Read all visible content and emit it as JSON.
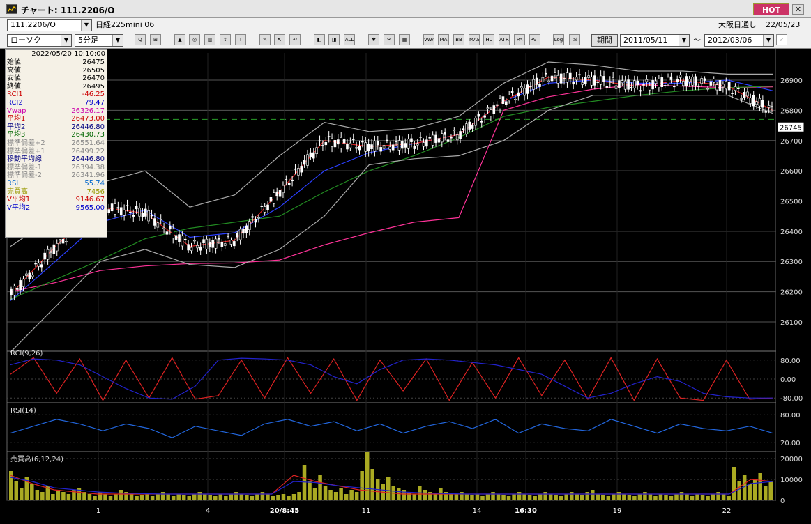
{
  "window": {
    "title": "チャート: 111.2206/O",
    "hot_label": "HOT",
    "close_label": "✕"
  },
  "row1": {
    "symbol_value": "111.2206/O",
    "instrument_name": "日経225mini 06",
    "market_label": "大阪日通し",
    "date_label": "22/05/23"
  },
  "row2": {
    "chart_type": "ローソク",
    "period": "5分足",
    "range_button": "期間",
    "date_from": "2011/05/11",
    "date_to": "2012/03/06",
    "range_sep": "〜"
  },
  "toolbar_buttons": [
    {
      "name": "zoom-icon",
      "label": "Q"
    },
    {
      "name": "grid-icon",
      "label": "⊞"
    },
    {
      "name": "chart-icon-1",
      "label": "▲"
    },
    {
      "name": "chart-icon-2",
      "label": "◎"
    },
    {
      "name": "chart-icon-3",
      "label": "▥"
    },
    {
      "name": "chart-icon-4",
      "label": "↕"
    },
    {
      "name": "chart-icon-5",
      "label": "!"
    },
    {
      "name": "pencil-icon",
      "label": "✎"
    },
    {
      "name": "cursor-icon",
      "label": "↖"
    },
    {
      "name": "undo-icon",
      "label": "↶"
    },
    {
      "name": "candle-icon-1",
      "label": "◧"
    },
    {
      "name": "candle-icon-2",
      "label": "◨"
    },
    {
      "name": "all-icon",
      "label": "ALL"
    },
    {
      "name": "settings-icon",
      "label": "✱"
    },
    {
      "name": "wrench-icon",
      "label": "✂"
    },
    {
      "name": "palette-icon",
      "label": "▦"
    },
    {
      "name": "vwap-button",
      "label": "VWAP"
    },
    {
      "name": "ma-button",
      "label": "MA"
    },
    {
      "name": "bb-button",
      "label": "BB"
    },
    {
      "name": "mae-button",
      "label": "MAE"
    },
    {
      "name": "hl-button",
      "label": "HL"
    },
    {
      "name": "atr-button",
      "label": "ATR"
    },
    {
      "name": "para-button",
      "label": "PA"
    },
    {
      "name": "pvt-button",
      "label": "PVT"
    },
    {
      "name": "log-button",
      "label": "Log"
    },
    {
      "name": "export-icon",
      "label": "⇲"
    }
  ],
  "infobox": {
    "timestamp": "2022/05/20  10:10:00",
    "rows": [
      {
        "label": "始値",
        "value": "26475",
        "color": "#000000"
      },
      {
        "label": "高値",
        "value": "26505",
        "color": "#000000"
      },
      {
        "label": "安値",
        "value": "26470",
        "color": "#000000"
      },
      {
        "label": "終値",
        "value": "26495",
        "color": "#000000"
      },
      {
        "label": "RCI1",
        "value": "-46.25",
        "color": "#cc0000"
      },
      {
        "label": "RCI2",
        "value": "79.47",
        "color": "#0000cc"
      },
      {
        "label": "Vwap",
        "value": "26326.17",
        "color": "#cc00aa"
      },
      {
        "label": "平均1",
        "value": "26473.00",
        "color": "#cc0000"
      },
      {
        "label": "平均2",
        "value": "26446.80",
        "color": "#000080"
      },
      {
        "label": "平均3",
        "value": "26430.73",
        "color": "#006600"
      },
      {
        "label": "標準偏差+2",
        "value": "26551.64",
        "color": "#888888"
      },
      {
        "label": "標準偏差+1",
        "value": "26499.22",
        "color": "#888888"
      },
      {
        "label": "移動平均線",
        "value": "26446.80",
        "color": "#000080"
      },
      {
        "label": "標準偏差-1",
        "value": "26394.38",
        "color": "#888888"
      },
      {
        "label": "標準偏差-2",
        "value": "26341.96",
        "color": "#888888"
      },
      {
        "label": "RSI",
        "value": "55.74",
        "color": "#0066cc"
      },
      {
        "label": "売買高",
        "value": "7456",
        "color": "#999900"
      },
      {
        "label": "V平均1",
        "value": "9146.67",
        "color": "#cc0000"
      },
      {
        "label": "V平均2",
        "value": "9565.00",
        "color": "#0000cc"
      }
    ]
  },
  "chart_data": [
    {
      "type": "candlestick",
      "y_ticks": [
        26100,
        26200,
        26300,
        26400,
        26500,
        26600,
        26700,
        26800,
        26900
      ],
      "ylim": [
        26040,
        26990
      ],
      "current_price_label": "26745",
      "x_labels": [
        "1",
        "4",
        "20/8:45",
        "11",
        "14",
        "16:30",
        "19",
        "22"
      ],
      "ref_line_dashed": 26770,
      "series": [
        {
          "name": "Vwap",
          "color": "#ff3399",
          "values": [
            26200,
            26230,
            26270,
            26285,
            26293,
            26295,
            26305,
            26355,
            26395,
            26430,
            26445,
            26800,
            26845,
            26870,
            26885,
            26880,
            26875,
            26878
          ]
        },
        {
          "name": "平均2",
          "color": "#2b3fff",
          "values": [
            26170,
            26300,
            26430,
            26470,
            26380,
            26395,
            26480,
            26600,
            26660,
            26690,
            26720,
            26830,
            26890,
            26900,
            26890,
            26890,
            26900,
            26865
          ]
        },
        {
          "name": "平均3",
          "color": "#228b22",
          "values": [
            26175,
            26240,
            26305,
            26375,
            26410,
            26430,
            26450,
            26530,
            26600,
            26650,
            26710,
            26780,
            26810,
            26830,
            26850,
            26865,
            26875,
            26880
          ]
        },
        {
          "name": "平均1",
          "color": "#dd2222",
          "values": [
            26190,
            26350,
            26480,
            26460,
            26350,
            26370,
            26530,
            26700,
            26680,
            26690,
            26720,
            26830,
            26910,
            26900,
            26880,
            26900,
            26880,
            26800
          ]
        },
        {
          "name": "標準偏差+2",
          "color": "#aaaaaa",
          "values": [
            26350,
            26450,
            26560,
            26600,
            26480,
            26520,
            26650,
            26760,
            26730,
            26740,
            26780,
            26890,
            26960,
            26950,
            26930,
            26930,
            26920,
            26920
          ]
        },
        {
          "name": "標準偏差-2",
          "color": "#aaaaaa",
          "values": [
            26000,
            26150,
            26300,
            26340,
            26290,
            26280,
            26340,
            26450,
            26620,
            26640,
            26650,
            26700,
            26800,
            26850,
            26850,
            26850,
            26850,
            26790
          ]
        }
      ]
    },
    {
      "type": "line",
      "title": "RCI(9,26)",
      "y_ticks": [
        "80.00",
        "0.00",
        "-80.00"
      ],
      "ylim": [
        -100,
        100
      ],
      "series": [
        {
          "name": "RCI1",
          "color": "#dd2222",
          "values": [
            20,
            90,
            -60,
            85,
            -90,
            80,
            -80,
            90,
            -85,
            -70,
            80,
            -80,
            90,
            -60,
            85,
            -90,
            80,
            -50,
            85,
            -90,
            70,
            -80,
            90,
            -70,
            80,
            -85,
            90,
            -90,
            85,
            -80,
            -90,
            80,
            -85,
            -80
          ]
        },
        {
          "name": "RCI2",
          "color": "#2222cc",
          "values": [
            60,
            85,
            80,
            60,
            10,
            -40,
            -80,
            -85,
            -30,
            80,
            88,
            85,
            80,
            60,
            10,
            -20,
            40,
            80,
            85,
            80,
            70,
            60,
            40,
            20,
            -30,
            -80,
            -60,
            -20,
            10,
            -10,
            -60,
            -75,
            -80,
            -80
          ]
        }
      ]
    },
    {
      "type": "line",
      "title": "RSI(14)",
      "y_ticks": [
        "80.00",
        "20.00"
      ],
      "ylim": [
        0,
        100
      ],
      "series": [
        {
          "name": "RSI",
          "color": "#2266dd",
          "values": [
            40,
            55,
            70,
            60,
            45,
            60,
            50,
            30,
            55,
            45,
            35,
            60,
            70,
            55,
            65,
            45,
            60,
            40,
            55,
            65,
            50,
            70,
            40,
            60,
            50,
            45,
            70,
            55,
            40,
            60,
            50,
            45,
            55,
            40
          ]
        }
      ]
    },
    {
      "type": "bar",
      "title": "売買高(6,12,24)",
      "y_ticks": [
        "20000",
        "10000",
        "0"
      ],
      "ylim": [
        0,
        22000
      ],
      "bar_color": "#aaaa22",
      "values": [
        14000,
        9000,
        6000,
        11000,
        8000,
        5000,
        4000,
        7000,
        3000,
        5000,
        4000,
        3000,
        5000,
        6000,
        4000,
        3000,
        2000,
        4000,
        3000,
        2000,
        3000,
        5000,
        4000,
        3000,
        2000,
        2500,
        3000,
        2000,
        3000,
        4000,
        3000,
        2000,
        3000,
        2500,
        2000,
        3000,
        4000,
        3000,
        2500,
        2000,
        3000,
        2000,
        3000,
        4000,
        3000,
        2500,
        2000,
        3000,
        4000,
        3000,
        2000,
        2500,
        3000,
        2000,
        3000,
        4000,
        17000,
        9000,
        6000,
        12000,
        7000,
        5000,
        4000,
        6000,
        3000,
        5000,
        4000,
        14000,
        23000,
        15000,
        10000,
        8000,
        11000,
        7000,
        6000,
        5000,
        4000,
        3000,
        7000,
        5000,
        4000,
        3000,
        6000,
        4000,
        3000,
        3000,
        4000,
        3000,
        2500,
        3000,
        2000,
        3000,
        4000,
        3000,
        2500,
        2000,
        3000,
        4000,
        3000,
        2500,
        2000,
        3000,
        4000,
        3000,
        2500,
        2000,
        3000,
        4000,
        3000,
        2500,
        4000,
        5000,
        3000,
        2500,
        2000,
        3000,
        4000,
        3000,
        2500,
        2000,
        3000,
        4000,
        3000,
        2000,
        3000,
        2500,
        2000,
        3000,
        4000,
        3000,
        2000,
        3000,
        2500,
        2000,
        3000,
        4000,
        3000,
        2000,
        16000,
        9000,
        12000,
        8000,
        10000,
        13000,
        7000,
        9000
      ],
      "series": [
        {
          "name": "V平均1",
          "color": "#dd2222",
          "values": [
            12000,
            8000,
            5000,
            4000,
            3000,
            3000,
            3000,
            3000,
            3000,
            3000,
            3000,
            3000,
            3000,
            12000,
            9000,
            7000,
            5000,
            4000,
            3000,
            3000,
            3000,
            3000,
            3000,
            3000,
            3000,
            3000,
            3000,
            3000,
            3000,
            3000,
            3000,
            3000,
            3000,
            3000,
            10000,
            9000
          ]
        },
        {
          "name": "V平均2",
          "color": "#2222cc",
          "values": [
            11000,
            9000,
            6000,
            5000,
            4000,
            3500,
            3200,
            3000,
            3000,
            3000,
            3000,
            3000,
            3000,
            9000,
            8500,
            7000,
            6000,
            5000,
            4000,
            3500,
            3200,
            3000,
            3000,
            3000,
            3000,
            3000,
            3000,
            3000,
            3000,
            3000,
            3000,
            3000,
            3000,
            3000,
            8000,
            9000
          ]
        }
      ]
    }
  ]
}
